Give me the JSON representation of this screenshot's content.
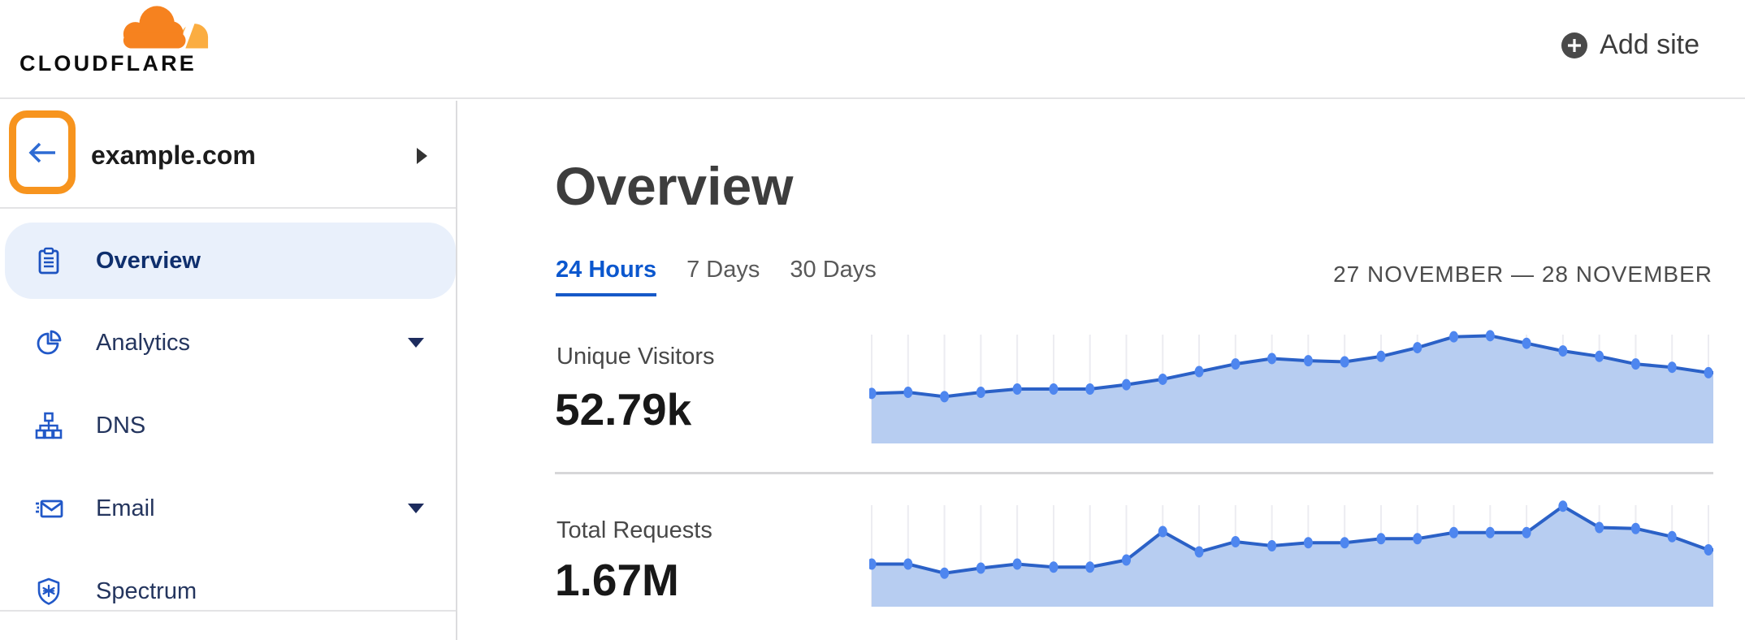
{
  "header": {
    "logo_text": "CLOUDFLARE",
    "add_site_label": "Add site"
  },
  "sidebar": {
    "site": {
      "name": "example.com"
    },
    "items": [
      {
        "label": "Overview",
        "icon": "clipboard-icon",
        "active": true,
        "expandable": false
      },
      {
        "label": "Analytics",
        "icon": "pie-chart-icon",
        "active": false,
        "expandable": true
      },
      {
        "label": "DNS",
        "icon": "sitemap-icon",
        "active": false,
        "expandable": false
      },
      {
        "label": "Email",
        "icon": "envelope-icon",
        "active": false,
        "expandable": true
      },
      {
        "label": "Spectrum",
        "icon": "shield-icon",
        "active": false,
        "expandable": false
      }
    ]
  },
  "main": {
    "title": "Overview",
    "tabs": [
      {
        "label": "24 Hours",
        "active": true
      },
      {
        "label": "7 Days",
        "active": false
      },
      {
        "label": "30 Days",
        "active": false
      }
    ],
    "date_range": "27 NOVEMBER — 28 NOVEMBER",
    "stats": [
      {
        "label": "Unique Visitors",
        "value": "52.79k"
      },
      {
        "label": "Total Requests",
        "value": "1.67M"
      }
    ]
  },
  "chart_data": [
    {
      "type": "area",
      "title": "Unique Visitors",
      "total_label": "52.79k",
      "x_axis": "time over 24 hours (27 November — 28 November), unlabeled ticks",
      "ylim": [
        0,
        100
      ],
      "grid": "vertical-only",
      "legend": "none",
      "values": [
        46,
        47,
        43,
        47,
        50,
        50,
        50,
        54,
        59,
        66,
        73,
        78,
        76,
        75,
        80,
        88,
        98,
        99,
        92,
        85,
        80,
        73,
        70,
        65
      ]
    },
    {
      "type": "area",
      "title": "Total Requests",
      "total_label": "1.67M",
      "x_axis": "time over 24 hours (27 November — 28 November), unlabeled ticks",
      "ylim": [
        0,
        100
      ],
      "grid": "vertical-only",
      "legend": "none",
      "values": [
        42,
        42,
        33,
        38,
        42,
        39,
        39,
        46,
        74,
        54,
        64,
        60,
        63,
        63,
        67,
        67,
        73,
        73,
        73,
        99,
        78,
        77,
        69,
        56
      ]
    }
  ],
  "colors": {
    "brand_orange": "#f6821f",
    "brand_orange_light": "#fbad41",
    "highlight_box_orange": "#f7941e",
    "accent_blue": "#0b57ce",
    "sidebar_icon_blue": "#2158c8",
    "sidebar_label_navy": "#24355e",
    "active_pill_bg": "#e9f0fb",
    "chart_line": "#2b61c7",
    "chart_dot": "#4e86ef",
    "chart_fill": "#b7cdf1",
    "chart_grid": "#ececf1",
    "divider_gray": "#d7d7d9"
  }
}
